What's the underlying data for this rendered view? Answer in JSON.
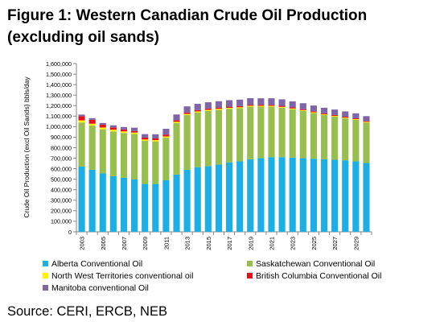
{
  "title_line1": "Figure 1: Western Canadian Crude Oil Production",
  "title_line2": "(excluding oil sands)",
  "source": "Source: CERI, ERCB, NEB",
  "chart_data": {
    "type": "bar",
    "stacked": true,
    "ylabel": "Crude Oil Production (excl Oil Sands) bbls/day",
    "xlabel": "",
    "ylim": [
      0,
      1600000
    ],
    "y_ticks": [
      "0",
      "100,000",
      "200,000",
      "300,000",
      "400,000",
      "500,000",
      "600,000",
      "700,000",
      "800,000",
      "900,000",
      "1,000,000",
      "1,100,000",
      "1,200,000",
      "1,300,000",
      "1,400,000",
      "1,500,000",
      "1,600,000"
    ],
    "x_tick_labels": [
      "2003",
      "2005",
      "2007",
      "2009",
      "2011",
      "2013",
      "2015",
      "2017",
      "2019",
      "2021",
      "2023",
      "2025",
      "2027",
      "2029"
    ],
    "categories": [
      "2003",
      "2004",
      "2005",
      "2006",
      "2007",
      "2008",
      "2009",
      "2010",
      "2011",
      "2012",
      "2013",
      "2014",
      "2015",
      "2016",
      "2017",
      "2018",
      "2019",
      "2020",
      "2021",
      "2022",
      "2023",
      "2024",
      "2025",
      "2026",
      "2027",
      "2028",
      "2029",
      "2030"
    ],
    "grid": false,
    "legend_position": "bottom",
    "series": [
      {
        "name": "Alberta Conventional Oil",
        "color": "#1BAFE6",
        "values": [
          620000,
          590000,
          555000,
          530000,
          515000,
          500000,
          455000,
          455000,
          490000,
          545000,
          590000,
          615000,
          625000,
          640000,
          660000,
          670000,
          690000,
          700000,
          710000,
          710000,
          705000,
          700000,
          695000,
          690000,
          685000,
          680000,
          670000,
          655000
        ]
      },
      {
        "name": "Saskatchewan Conventional Oil",
        "color": "#97BE4E",
        "values": [
          420000,
          420000,
          420000,
          425000,
          425000,
          430000,
          410000,
          405000,
          405000,
          490000,
          520000,
          520000,
          525000,
          520000,
          510000,
          505000,
          500000,
          490000,
          480000,
          470000,
          460000,
          450000,
          435000,
          420000,
          410000,
          400000,
          395000,
          385000
        ]
      },
      {
        "name": "North West Territories conventional oil",
        "color": "#FFF200",
        "values": [
          20000,
          18000,
          17000,
          16000,
          15000,
          14000,
          13000,
          12000,
          12000,
          11000,
          11000,
          10000,
          10000,
          10000,
          9000,
          9000,
          9000,
          8000,
          8000,
          8000,
          8000,
          7000,
          7000,
          7000,
          7000,
          6000,
          6000,
          6000
        ]
      },
      {
        "name": "British Columbia Conventional Oil",
        "color": "#E4121B",
        "values": [
          40000,
          38000,
          26000,
          22000,
          18000,
          15000,
          18000,
          16000,
          18000,
          15000,
          14000,
          13000,
          12000,
          12000,
          11000,
          11000,
          10000,
          10000,
          10000,
          10000,
          10000,
          9000,
          9000,
          9000,
          9000,
          9000,
          8000,
          8000
        ]
      },
      {
        "name": "Manitoba conventional Oil",
        "color": "#7D65A8",
        "values": [
          15000,
          15000,
          17000,
          20000,
          24000,
          31000,
          33000,
          40000,
          55000,
          55000,
          58000,
          59000,
          60000,
          60000,
          62000,
          62000,
          62000,
          62000,
          62000,
          62000,
          58000,
          57000,
          55000,
          54000,
          52000,
          50000,
          48000,
          46000
        ]
      }
    ]
  }
}
